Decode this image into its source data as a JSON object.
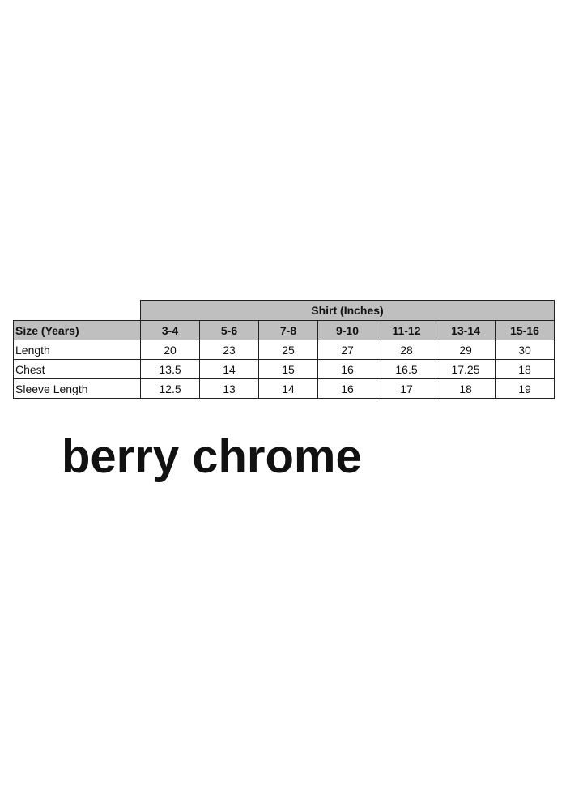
{
  "table": {
    "group_header": "Shirt (Inches)",
    "row_header": "Size (Years)",
    "sizes": [
      "3-4",
      "5-6",
      "7-8",
      "9-10",
      "11-12",
      "13-14",
      "15-16"
    ],
    "rows": [
      {
        "label": "Length",
        "values": [
          "20",
          "23",
          "25",
          "27",
          "28",
          "29",
          "30"
        ]
      },
      {
        "label": "Chest",
        "values": [
          "13.5",
          "14",
          "15",
          "16",
          "16.5",
          "17.25",
          "18"
        ]
      },
      {
        "label": "Sleeve Length",
        "values": [
          "12.5",
          "13",
          "14",
          "16",
          "17",
          "18",
          "19"
        ]
      }
    ],
    "header_color": "#bfbfbf"
  },
  "brand": "berry chrome"
}
